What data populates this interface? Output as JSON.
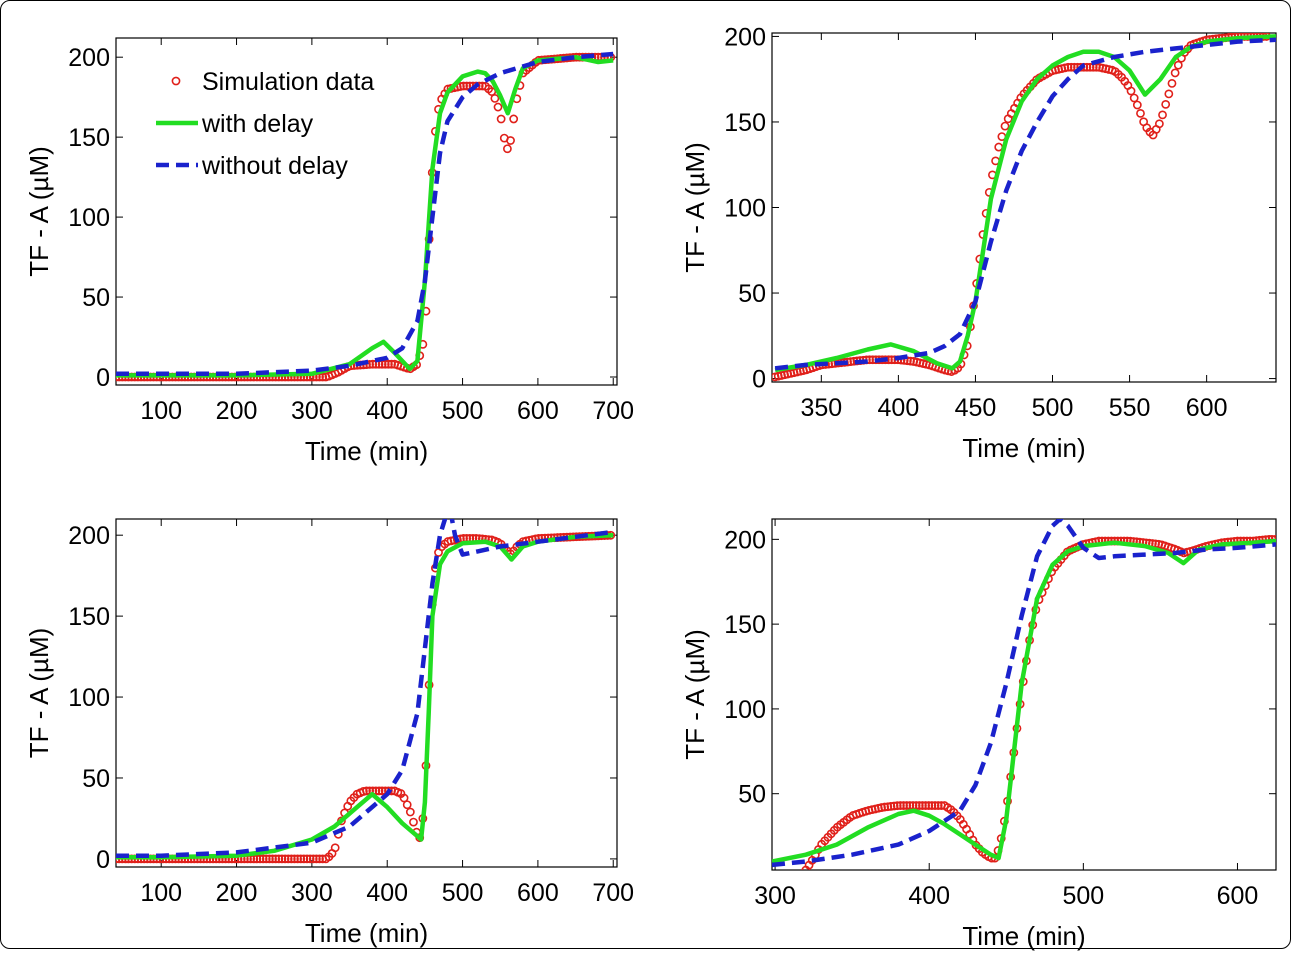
{
  "figure": {
    "legend_labels": [
      "Simulation data",
      "with delay",
      "without delay"
    ],
    "colors": {
      "simulation": "#e0201a",
      "with_delay": "#22dd22",
      "without_delay": "#1a22cc"
    }
  },
  "chart_data": [
    {
      "type": "line",
      "panel": "top-left",
      "xlabel": "Time (min)",
      "ylabel": "TF - A (µM)",
      "xlim": [
        40,
        705
      ],
      "ylim": [
        -5,
        212
      ],
      "xticks": [
        100,
        200,
        300,
        400,
        500,
        600,
        700
      ],
      "yticks": [
        0,
        50,
        100,
        150,
        200
      ],
      "legend": "top-left",
      "series": [
        {
          "name": "Simulation data",
          "style": "markers",
          "x": [
            40,
            100,
            200,
            300,
            320,
            335,
            350,
            380,
            410,
            430,
            440,
            450,
            455,
            460,
            465,
            470,
            480,
            500,
            520,
            530,
            540,
            550,
            555,
            560,
            565,
            570,
            580,
            600,
            650,
            700
          ],
          "y": [
            0,
            0,
            0,
            0,
            0,
            3,
            7,
            8,
            8,
            5,
            8,
            25,
            80,
            130,
            160,
            172,
            180,
            182,
            182,
            182,
            178,
            165,
            150,
            142,
            150,
            170,
            190,
            198,
            200,
            200
          ]
        },
        {
          "name": "with delay",
          "style": "solid",
          "x": [
            40,
            100,
            200,
            300,
            350,
            380,
            395,
            410,
            430,
            440,
            450,
            460,
            470,
            480,
            500,
            520,
            530,
            540,
            550,
            560,
            570,
            580,
            600,
            650,
            680,
            700
          ],
          "y": [
            1,
            1,
            1,
            2,
            8,
            18,
            22,
            15,
            5,
            10,
            60,
            130,
            165,
            178,
            188,
            191,
            190,
            185,
            176,
            165,
            180,
            193,
            198,
            200,
            197,
            198
          ]
        },
        {
          "name": "without delay",
          "style": "dashed",
          "x": [
            40,
            100,
            200,
            300,
            350,
            400,
            420,
            440,
            450,
            460,
            470,
            480,
            500,
            520,
            550,
            600,
            650,
            700
          ],
          "y": [
            2,
            2,
            2,
            4,
            7,
            12,
            18,
            35,
            60,
            100,
            140,
            160,
            175,
            183,
            190,
            197,
            200,
            202
          ]
        }
      ]
    },
    {
      "type": "line",
      "panel": "top-right",
      "xlabel": "Time (min)",
      "ylabel": "TF - A (µM)",
      "xlim": [
        318,
        645
      ],
      "ylim": [
        -2,
        202
      ],
      "xticks": [
        350,
        400,
        450,
        500,
        550,
        600
      ],
      "yticks": [
        0,
        50,
        100,
        150,
        200
      ],
      "series": [
        {
          "name": "Simulation data",
          "style": "markers",
          "x": [
            320,
            330,
            340,
            350,
            360,
            370,
            380,
            390,
            400,
            410,
            420,
            430,
            435,
            440,
            445,
            450,
            455,
            460,
            465,
            470,
            480,
            490,
            500,
            510,
            520,
            530,
            540,
            545,
            550,
            555,
            560,
            565,
            570,
            575,
            580,
            585,
            590,
            600,
            620,
            640
          ],
          "y": [
            1,
            3,
            5,
            8,
            9,
            10,
            11,
            11,
            11,
            10,
            8,
            5,
            4,
            7,
            20,
            50,
            85,
            115,
            135,
            150,
            165,
            175,
            180,
            182,
            182,
            182,
            180,
            176,
            170,
            160,
            148,
            142,
            150,
            165,
            180,
            190,
            195,
            198,
            200,
            200
          ]
        },
        {
          "name": "with delay",
          "style": "solid",
          "x": [
            320,
            340,
            360,
            380,
            395,
            410,
            425,
            435,
            440,
            445,
            450,
            455,
            460,
            470,
            480,
            490,
            500,
            510,
            520,
            530,
            540,
            550,
            560,
            570,
            580,
            590,
            600,
            620,
            645
          ],
          "y": [
            5,
            8,
            12,
            17,
            20,
            16,
            9,
            6,
            10,
            25,
            45,
            75,
            105,
            140,
            162,
            175,
            183,
            188,
            191,
            191,
            188,
            180,
            166,
            175,
            188,
            194,
            197,
            199,
            200
          ]
        },
        {
          "name": "without delay",
          "style": "dashed",
          "x": [
            320,
            340,
            360,
            380,
            400,
            420,
            430,
            440,
            450,
            460,
            470,
            480,
            490,
            500,
            510,
            520,
            540,
            560,
            580,
            600,
            620,
            645
          ],
          "y": [
            6,
            8,
            9,
            10,
            12,
            15,
            19,
            26,
            45,
            80,
            110,
            133,
            150,
            165,
            175,
            183,
            188,
            191,
            193,
            195,
            197,
            198
          ]
        }
      ]
    },
    {
      "type": "line",
      "panel": "bottom-left",
      "xlabel": "Time (min)",
      "ylabel": "TF - A (µM)",
      "xlim": [
        40,
        705
      ],
      "ylim": [
        -5,
        210
      ],
      "xticks": [
        100,
        200,
        300,
        400,
        500,
        600,
        700
      ],
      "yticks": [
        0,
        50,
        100,
        150,
        200
      ],
      "series": [
        {
          "name": "Simulation data",
          "style": "markers",
          "x": [
            40,
            100,
            200,
            300,
            320,
            330,
            340,
            350,
            360,
            370,
            380,
            390,
            400,
            410,
            420,
            430,
            440,
            445,
            450,
            455,
            460,
            465,
            470,
            480,
            500,
            520,
            540,
            550,
            560,
            565,
            570,
            580,
            600,
            650,
            700
          ],
          "y": [
            0,
            0,
            0,
            0,
            0,
            5,
            25,
            35,
            40,
            42,
            42,
            42,
            42,
            42,
            40,
            30,
            15,
            12,
            40,
            100,
            160,
            185,
            192,
            196,
            198,
            198,
            197,
            195,
            190,
            188,
            192,
            196,
            198,
            199,
            200
          ]
        },
        {
          "name": "with delay",
          "style": "solid",
          "x": [
            40,
            100,
            200,
            250,
            300,
            330,
            360,
            380,
            400,
            420,
            440,
            445,
            450,
            455,
            460,
            470,
            480,
            500,
            530,
            550,
            565,
            580,
            600,
            650,
            700
          ],
          "y": [
            1,
            1,
            2,
            5,
            12,
            20,
            32,
            40,
            32,
            22,
            14,
            12,
            35,
            90,
            150,
            182,
            190,
            195,
            196,
            193,
            185,
            193,
            196,
            199,
            200
          ]
        },
        {
          "name": "without delay",
          "style": "dashed",
          "x": [
            40,
            100,
            200,
            300,
            350,
            400,
            420,
            440,
            450,
            460,
            470,
            480,
            485,
            490,
            500,
            520,
            550,
            600,
            650,
            700
          ],
          "y": [
            2,
            2,
            4,
            10,
            20,
            40,
            55,
            90,
            130,
            170,
            200,
            215,
            212,
            200,
            188,
            190,
            193,
            196,
            199,
            202
          ]
        }
      ]
    },
    {
      "type": "line",
      "panel": "bottom-right",
      "xlabel": "Time (min)",
      "ylabel": "TF - A (µM)",
      "xlim": [
        298,
        625
      ],
      "ylim": [
        5,
        212
      ],
      "xticks": [
        300,
        400,
        500,
        600
      ],
      "yticks": [
        50,
        100,
        150,
        200
      ],
      "series": [
        {
          "name": "Simulation data",
          "style": "markers",
          "x": [
            320,
            325,
            330,
            340,
            350,
            360,
            370,
            380,
            390,
            400,
            410,
            415,
            420,
            425,
            430,
            435,
            440,
            443,
            446,
            450,
            455,
            460,
            465,
            470,
            480,
            490,
            500,
            510,
            520,
            530,
            540,
            550,
            560,
            565,
            570,
            580,
            590,
            600,
            610,
            620,
            625
          ],
          "y": [
            5,
            12,
            20,
            30,
            37,
            40,
            42,
            43,
            43,
            43,
            43,
            40,
            35,
            28,
            20,
            15,
            12,
            12,
            20,
            40,
            75,
            110,
            140,
            162,
            182,
            193,
            197,
            199,
            199,
            199,
            198,
            197,
            194,
            192,
            193,
            196,
            198,
            199,
            199,
            200,
            200
          ]
        },
        {
          "name": "with delay",
          "style": "solid",
          "x": [
            298,
            320,
            340,
            360,
            380,
            390,
            400,
            410,
            420,
            430,
            440,
            445,
            450,
            455,
            460,
            470,
            480,
            490,
            500,
            520,
            540,
            555,
            565,
            575,
            590,
            610,
            625
          ],
          "y": [
            10,
            14,
            20,
            30,
            38,
            40,
            37,
            32,
            26,
            20,
            14,
            12,
            35,
            75,
            115,
            165,
            185,
            193,
            196,
            198,
            196,
            192,
            186,
            194,
            197,
            198,
            199
          ]
        },
        {
          "name": "without delay",
          "style": "dashed",
          "x": [
            298,
            320,
            350,
            380,
            400,
            420,
            430,
            440,
            450,
            460,
            470,
            480,
            485,
            490,
            500,
            510,
            520,
            540,
            560,
            580,
            600,
            625
          ],
          "y": [
            8,
            10,
            14,
            20,
            28,
            40,
            55,
            80,
            115,
            155,
            190,
            208,
            212,
            208,
            195,
            189,
            190,
            191,
            192,
            194,
            195,
            197
          ]
        }
      ]
    }
  ]
}
